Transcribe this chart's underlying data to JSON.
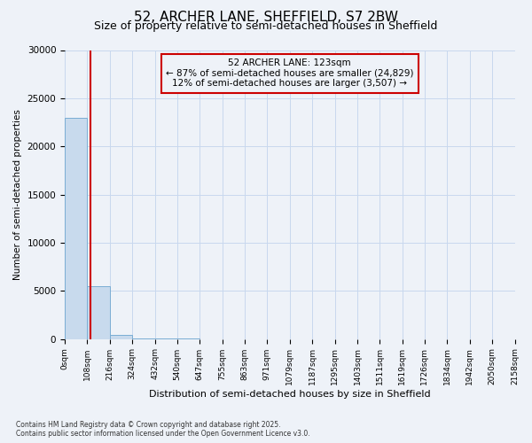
{
  "title": "52, ARCHER LANE, SHEFFIELD, S7 2BW",
  "subtitle": "Size of property relative to semi-detached houses in Sheffield",
  "xlabel": "Distribution of semi-detached houses by size in Sheffield",
  "ylabel": "Number of semi-detached properties",
  "bar_color": "#c8daed",
  "bar_edge_color": "#7aadd4",
  "annotation_box_color": "#cc0000",
  "property_line_color": "#cc0000",
  "property_size": 123,
  "annotation_line1": "52 ARCHER LANE: 123sqm",
  "annotation_line2": "← 87% of semi-detached houses are smaller (24,829)",
  "annotation_line3": "12% of semi-detached houses are larger (3,507) →",
  "footer_text": "Contains HM Land Registry data © Crown copyright and database right 2025.\nContains public sector information licensed under the Open Government Licence v3.0.",
  "bin_edges": [
    0,
    108,
    216,
    324,
    432,
    540,
    647,
    755,
    863,
    971,
    1079,
    1187,
    1295,
    1403,
    1511,
    1619,
    1726,
    1834,
    1942,
    2050,
    2158
  ],
  "bin_counts": [
    23000,
    5500,
    400,
    100,
    40,
    15,
    8,
    4,
    2,
    1,
    1,
    0,
    0,
    0,
    0,
    0,
    0,
    0,
    0,
    0
  ],
  "ylim": [
    0,
    30000
  ],
  "yticks": [
    0,
    5000,
    10000,
    15000,
    20000,
    25000,
    30000
  ],
  "background_color": "#eef2f8",
  "grid_color": "#c8d8ee",
  "title_fontsize": 11,
  "subtitle_fontsize": 9
}
